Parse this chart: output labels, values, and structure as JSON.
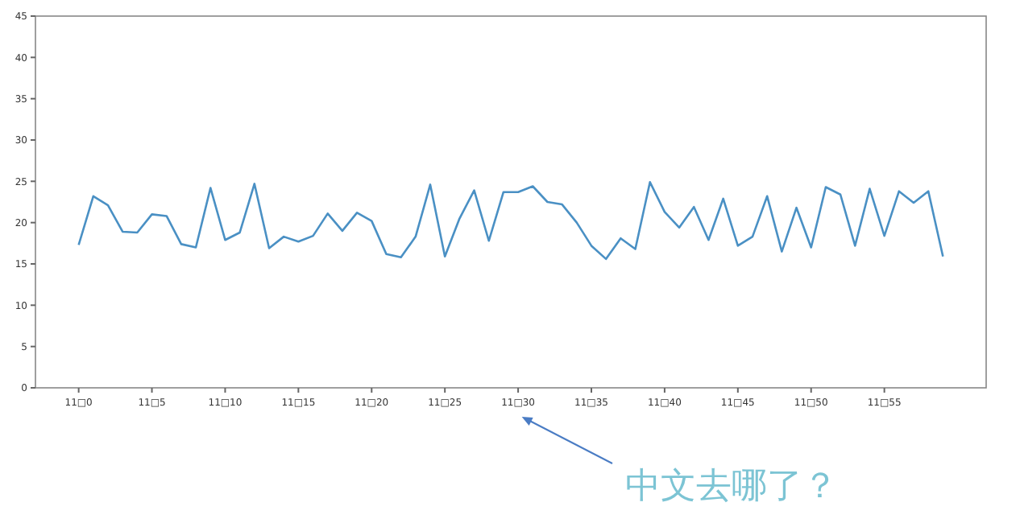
{
  "chart_data": {
    "type": "line",
    "categories": [
      "11□0",
      null,
      null,
      null,
      null,
      "11□5",
      null,
      null,
      null,
      null,
      "11□10",
      null,
      null,
      null,
      null,
      "11□15",
      null,
      null,
      null,
      null,
      "11□20",
      null,
      null,
      null,
      null,
      "11□25",
      null,
      null,
      null,
      null,
      "11□30",
      null,
      null,
      null,
      null,
      "11□35",
      null,
      null,
      null,
      null,
      "11□40",
      null,
      null,
      null,
      null,
      "11□45",
      null,
      null,
      null,
      null,
      "11□50",
      null,
      null,
      null,
      null,
      "11□55",
      null,
      null,
      null,
      null
    ],
    "series": [
      {
        "color": "#4a90c4",
        "values": [
          17.3,
          23.2,
          22.1,
          18.9,
          18.8,
          21.0,
          20.8,
          17.4,
          17.0,
          24.2,
          17.9,
          18.8,
          24.7,
          16.9,
          18.3,
          17.7,
          18.4,
          21.1,
          19.0,
          21.2,
          20.2,
          16.2,
          15.8,
          18.3,
          24.6,
          15.9,
          20.5,
          23.9,
          17.8,
          23.7,
          23.7,
          24.4,
          22.5,
          22.2,
          20.0,
          17.2,
          15.6,
          18.1,
          16.8,
          24.9,
          21.3,
          19.4,
          21.9,
          17.9,
          22.9,
          17.2,
          18.3,
          23.2,
          16.5,
          21.8,
          17.0,
          24.3,
          23.4,
          17.2,
          24.1,
          18.4,
          23.8,
          22.4,
          23.8,
          15.9
        ]
      }
    ],
    "ylim": [
      0,
      45
    ],
    "yticks": [
      0,
      5,
      10,
      15,
      20,
      25,
      30,
      35,
      40,
      45
    ],
    "grid": false,
    "annotations": [
      "中文去哪了？"
    ]
  }
}
